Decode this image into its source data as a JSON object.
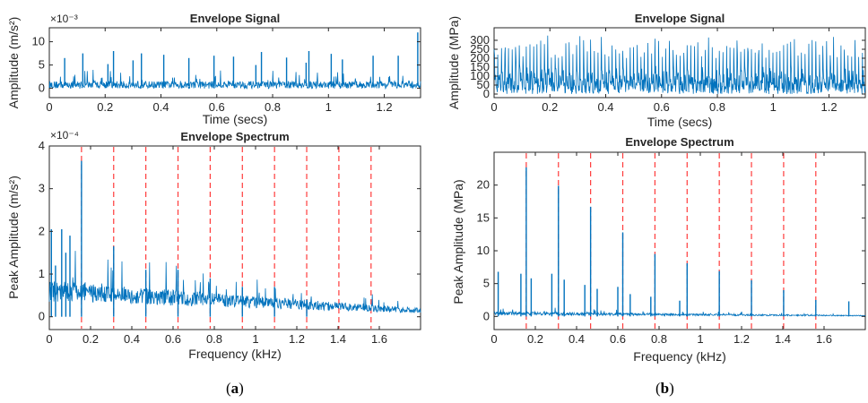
{
  "panels": [
    {
      "label": "a",
      "caption_open": "(",
      "caption_close": ")"
    },
    {
      "label": "b",
      "caption_open": "(",
      "caption_close": ")"
    }
  ],
  "colors": {
    "signal": "#0072BD",
    "harmonic_marker": "#FF3B3B",
    "axes": "#262626"
  },
  "chart_data": [
    {
      "type": "line",
      "panel": "a",
      "title": "Envelope Signal",
      "xlabel": "Time (secs)",
      "ylabel": "Amplitude (m/s²)",
      "exponent_label": "×10⁻³",
      "xlim": [
        0,
        1.33
      ],
      "ylim": [
        -2,
        13
      ],
      "xticks": [
        0,
        0.2,
        0.4,
        0.6,
        0.8,
        1,
        1.2
      ],
      "xtick_labels": [
        "0",
        "0.2",
        "0.4",
        "0.6",
        "0.8",
        "1",
        "1.2"
      ],
      "yticks": [
        0,
        5,
        10
      ],
      "ytick_labels": [
        "0",
        "5",
        "10"
      ],
      "series": [
        {
          "style": "dense-impulsive",
          "baseline": 0.5,
          "noise": 1.6,
          "spikes_x": [
            0.055,
            0.12,
            0.21,
            0.23,
            0.3,
            0.33,
            0.41,
            0.5,
            0.59,
            0.66,
            0.74,
            0.76,
            0.85,
            0.92,
            0.93,
            1.01,
            1.05,
            1.16,
            1.25,
            1.32
          ],
          "spikes_y": [
            6.5,
            7.5,
            5.2,
            8,
            6,
            7.5,
            7.2,
            6.5,
            7,
            6.8,
            5,
            7.8,
            6.6,
            5.5,
            8,
            7.4,
            6.2,
            7,
            7,
            12
          ]
        }
      ]
    },
    {
      "type": "line",
      "panel": "a",
      "title": "Envelope Spectrum",
      "xlabel": "Frequency (kHz)",
      "ylabel": "Peak Amplitude (m/s²)",
      "exponent_label": "×10⁻⁴",
      "xlim": [
        0,
        1.8
      ],
      "ylim": [
        -0.3,
        4
      ],
      "xticks": [
        0,
        0.2,
        0.4,
        0.6,
        0.8,
        1,
        1.2,
        1.4,
        1.6
      ],
      "xtick_labels": [
        "0",
        "0.2",
        "0.4",
        "0.6",
        "0.8",
        "1",
        "1.2",
        "1.4",
        "1.6"
      ],
      "yticks": [
        0,
        1,
        2,
        3,
        4
      ],
      "ytick_labels": [
        "0",
        "1",
        "2",
        "3",
        "4"
      ],
      "harmonic_markers_khz": [
        0.156,
        0.312,
        0.468,
        0.624,
        0.78,
        0.936,
        1.092,
        1.248,
        1.404,
        1.56
      ],
      "series": [
        {
          "style": "spectrum",
          "baseline": 0.35,
          "noise": 0.55,
          "peaks_x": [
            0.156,
            0.312,
            0.468,
            0.624,
            0.78,
            0.936,
            1.092,
            1.248,
            0.01,
            0.03,
            0.06,
            0.08,
            0.1
          ],
          "peaks_y": [
            3.65,
            1.65,
            1.1,
            1.1,
            0.9,
            0.7,
            0.7,
            0.4,
            2.05,
            1.2,
            2.05,
            1.5,
            1.9
          ]
        }
      ]
    },
    {
      "type": "line",
      "panel": "b",
      "title": "Envelope Signal",
      "xlabel": "Time (secs)",
      "ylabel": "Amplitude (MPa)",
      "xlim": [
        0,
        1.33
      ],
      "ylim": [
        -20,
        370
      ],
      "xticks": [
        0,
        0.2,
        0.4,
        0.6,
        0.8,
        1,
        1.2
      ],
      "xtick_labels": [
        "0",
        "0.2",
        "0.4",
        "0.6",
        "0.8",
        "1",
        "1.2"
      ],
      "yticks": [
        0,
        50,
        100,
        150,
        200,
        250,
        300
      ],
      "ytick_labels": [
        "0",
        "50",
        "100",
        "150",
        "200",
        "250",
        "300"
      ],
      "series": [
        {
          "style": "periodic-impulsive",
          "baseline": 60,
          "noise": 130,
          "period_s": 0.0128,
          "peak_min": 200,
          "peak_max": 335
        }
      ]
    },
    {
      "type": "line",
      "panel": "b",
      "title": "Envelope Spectrum",
      "xlabel": "Frequency (kHz)",
      "ylabel": "Peak Amplitude (MPa)",
      "xlim": [
        0,
        1.8
      ],
      "ylim": [
        -2,
        25
      ],
      "xticks": [
        0,
        0.2,
        0.4,
        0.6,
        0.8,
        1,
        1.2,
        1.4,
        1.6
      ],
      "xtick_labels": [
        "0",
        "0.2",
        "0.4",
        "0.6",
        "0.8",
        "1",
        "1.2",
        "1.4",
        "1.6"
      ],
      "yticks": [
        0,
        5,
        10,
        15,
        20
      ],
      "ytick_labels": [
        "0",
        "5",
        "10",
        "15",
        "20"
      ],
      "harmonic_markers_khz": [
        0.156,
        0.312,
        0.468,
        0.624,
        0.78,
        0.936,
        1.092,
        1.248,
        1.404,
        1.56
      ],
      "series": [
        {
          "style": "spectrum",
          "baseline": 0.2,
          "noise": 0.6,
          "peaks_x": [
            0.156,
            0.312,
            0.468,
            0.624,
            0.78,
            0.936,
            1.092,
            1.248,
            1.404,
            1.56,
            0.02,
            0.13,
            0.18,
            0.28,
            0.34,
            0.44,
            0.5,
            0.6,
            0.66,
            0.76,
            0.9,
            1.72
          ],
          "peaks_y": [
            22.7,
            19.9,
            16.7,
            12.8,
            9.5,
            8.1,
            6.9,
            5.5,
            4.0,
            2.5,
            6.8,
            6.5,
            5.8,
            6.5,
            5.6,
            4.8,
            4.2,
            4.5,
            3.4,
            3.0,
            2.4,
            2.3
          ]
        }
      ]
    }
  ]
}
